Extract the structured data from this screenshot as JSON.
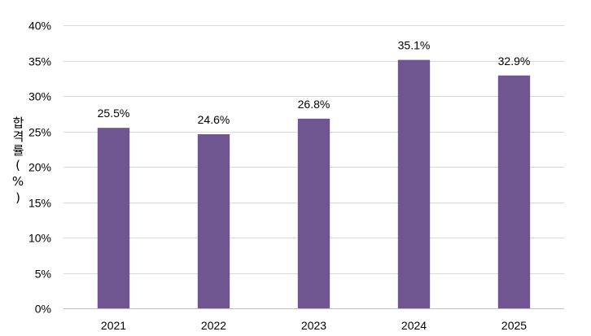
{
  "chart_data": {
    "type": "bar",
    "categories": [
      "2021",
      "2022",
      "2023",
      "2024",
      "2025"
    ],
    "values": [
      25.5,
      24.6,
      26.8,
      35.1,
      32.9
    ],
    "data_labels": [
      "25.5%",
      "24.6%",
      "26.8%",
      "35.1%",
      "32.9%"
    ],
    "title": "",
    "xlabel": "",
    "ylabel": "합격률(%)",
    "ylim": [
      0,
      40
    ],
    "yticks": [
      0,
      5,
      10,
      15,
      20,
      25,
      30,
      35,
      40
    ],
    "ytick_labels": [
      "0%",
      "5%",
      "10%",
      "15%",
      "20%",
      "25%",
      "30%",
      "35%",
      "40%"
    ],
    "grid": true,
    "legend": "none",
    "bar_color": "#6F5690",
    "grid_color": "#D9D9D9"
  }
}
